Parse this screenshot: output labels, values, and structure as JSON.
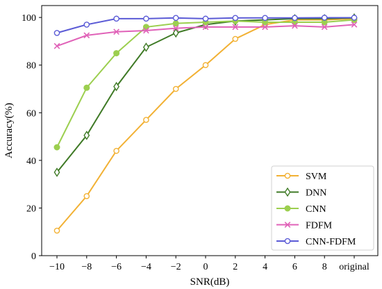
{
  "chart_data": {
    "type": "line",
    "categories": [
      "−10",
      "−8",
      "−6",
      "−4",
      "−2",
      "0",
      "2",
      "4",
      "6",
      "8",
      "original"
    ],
    "xlabel": "SNR(dB)",
    "ylabel": "Accuracy(%)",
    "ylim": [
      0,
      105
    ],
    "yticks": [
      0,
      20,
      40,
      60,
      80,
      100
    ],
    "grid": false,
    "legend_position": "bottom-right",
    "series": [
      {
        "name": "SVM",
        "color": "#f2b134",
        "marker": "open-circle",
        "values": [
          10.5,
          25,
          44,
          57,
          70,
          80,
          91,
          97,
          99,
          99,
          99.5
        ]
      },
      {
        "name": "DNN",
        "color": "#3f7a26",
        "marker": "open-diamond",
        "values": [
          35,
          50.5,
          71,
          87.5,
          93.5,
          97,
          98.5,
          99,
          99.5,
          99.5,
          99.8
        ]
      },
      {
        "name": "CNN",
        "color": "#9ccf4f",
        "marker": "filled-circle",
        "values": [
          45.5,
          70.5,
          85,
          96,
          97.5,
          98,
          98.5,
          98,
          98,
          98,
          99
        ]
      },
      {
        "name": "FDFM",
        "color": "#e062b8",
        "marker": "x",
        "values": [
          88,
          92.5,
          94,
          94.5,
          95.5,
          96,
          96,
          96,
          96.5,
          96,
          97
        ]
      },
      {
        "name": "CNN-FDFM",
        "color": "#5b5bd6",
        "marker": "open-circle",
        "values": [
          93.5,
          97,
          99.5,
          99.5,
          99.8,
          99.5,
          99.8,
          99.8,
          99.8,
          99.9,
          99.9
        ]
      }
    ]
  }
}
